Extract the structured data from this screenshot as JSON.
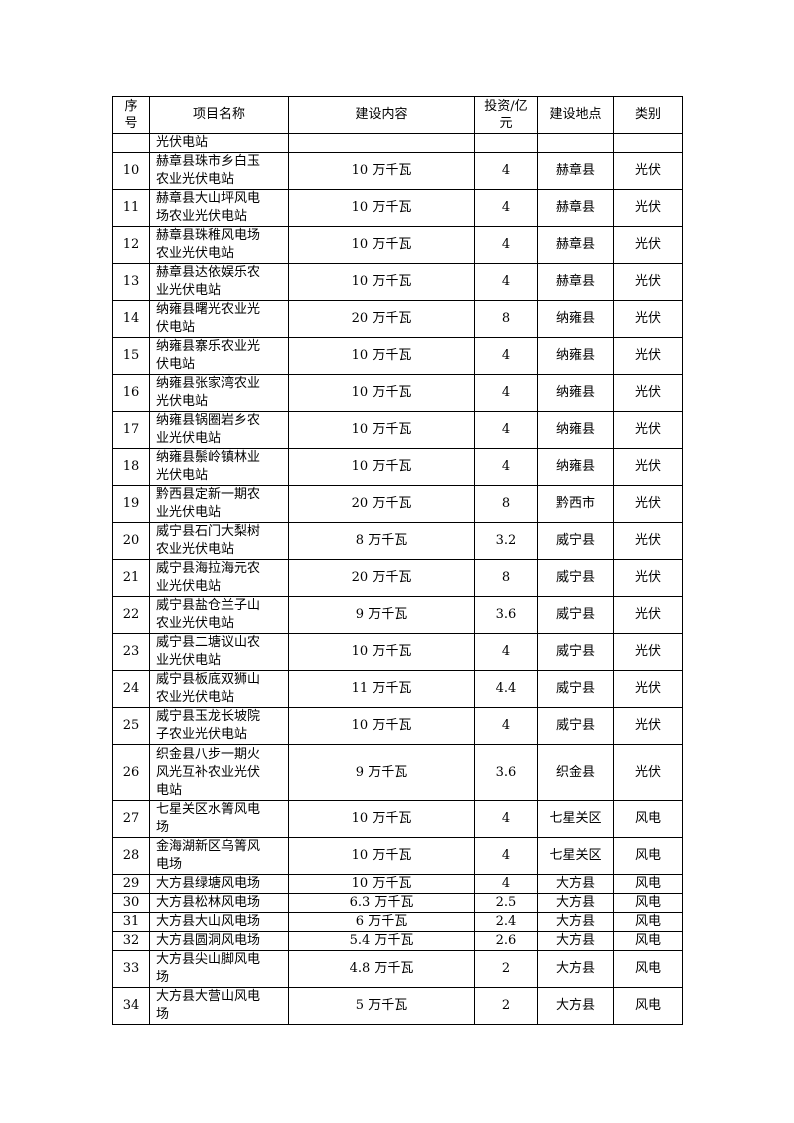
{
  "table": {
    "headers": [
      "序号",
      "项目名称",
      "建设内容",
      "投资/亿元",
      "建设地点",
      "类别"
    ],
    "continuation": {
      "no": "",
      "name": "光伏电站",
      "content": "",
      "investment": "",
      "location": "",
      "type": ""
    },
    "rows": [
      {
        "no": "10",
        "name": "赫章县珠市乡白玉农业光伏电站",
        "content": "10 万千瓦",
        "investment": "4",
        "location": "赫章县",
        "type": "光伏",
        "lines": 2
      },
      {
        "no": "11",
        "name": "赫章县大山坪风电场农业光伏电站",
        "content": "10 万千瓦",
        "investment": "4",
        "location": "赫章县",
        "type": "光伏",
        "lines": 2
      },
      {
        "no": "12",
        "name": "赫章县珠稚风电场农业光伏电站",
        "content": "10 万千瓦",
        "investment": "4",
        "location": "赫章县",
        "type": "光伏",
        "lines": 2
      },
      {
        "no": "13",
        "name": "赫章县达依娱乐农业光伏电站",
        "content": "10 万千瓦",
        "investment": "4",
        "location": "赫章县",
        "type": "光伏",
        "lines": 2
      },
      {
        "no": "14",
        "name": "纳雍县曙光农业光伏电站",
        "content": "20 万千瓦",
        "investment": "8",
        "location": "纳雍县",
        "type": "光伏",
        "lines": 2
      },
      {
        "no": "15",
        "name": "纳雍县寨乐农业光伏电站",
        "content": "10 万千瓦",
        "investment": "4",
        "location": "纳雍县",
        "type": "光伏",
        "lines": 2
      },
      {
        "no": "16",
        "name": "纳雍县张家湾农业光伏电站",
        "content": "10 万千瓦",
        "investment": "4",
        "location": "纳雍县",
        "type": "光伏",
        "lines": 2
      },
      {
        "no": "17",
        "name": "纳雍县锅圈岩乡农业光伏电站",
        "content": "10 万千瓦",
        "investment": "4",
        "location": "纳雍县",
        "type": "光伏",
        "lines": 2
      },
      {
        "no": "18",
        "name": "纳雍县鬃岭镇林业光伏电站",
        "content": "10 万千瓦",
        "investment": "4",
        "location": "纳雍县",
        "type": "光伏",
        "lines": 2
      },
      {
        "no": "19",
        "name": "黔西县定新一期农业光伏电站",
        "content": "20 万千瓦",
        "investment": "8",
        "location": "黔西市",
        "type": "光伏",
        "lines": 2
      },
      {
        "no": "20",
        "name": "威宁县石门大梨树农业光伏电站",
        "content": "8 万千瓦",
        "investment": "3.2",
        "location": "威宁县",
        "type": "光伏",
        "lines": 2
      },
      {
        "no": "21",
        "name": "威宁县海拉海元农业光伏电站",
        "content": "20 万千瓦",
        "investment": "8",
        "location": "威宁县",
        "type": "光伏",
        "lines": 2
      },
      {
        "no": "22",
        "name": "威宁县盐仓兰子山农业光伏电站",
        "content": "9 万千瓦",
        "investment": "3.6",
        "location": "威宁县",
        "type": "光伏",
        "lines": 2
      },
      {
        "no": "23",
        "name": "威宁县二塘议山农业光伏电站",
        "content": "10 万千瓦",
        "investment": "4",
        "location": "威宁县",
        "type": "光伏",
        "lines": 2
      },
      {
        "no": "24",
        "name": "威宁县板底双狮山农业光伏电站",
        "content": "11 万千瓦",
        "investment": "4.4",
        "location": "威宁县",
        "type": "光伏",
        "lines": 2
      },
      {
        "no": "25",
        "name": "威宁县玉龙长坡院子农业光伏电站",
        "content": "10 万千瓦",
        "investment": "4",
        "location": "威宁县",
        "type": "光伏",
        "lines": 2
      },
      {
        "no": "26",
        "name": "织金县八步一期火风光互补农业光伏电站",
        "content": "9 万千瓦",
        "investment": "3.6",
        "location": "织金县",
        "type": "光伏",
        "lines": 3
      },
      {
        "no": "27",
        "name": "七星关区水箐风电场",
        "content": "10 万千瓦",
        "investment": "4",
        "location": "七星关区",
        "type": "风电",
        "lines": 2
      },
      {
        "no": "28",
        "name": "金海湖新区乌箐风电场",
        "content": "10 万千瓦",
        "investment": "4",
        "location": "七星关区",
        "type": "风电",
        "lines": 2
      },
      {
        "no": "29",
        "name": "大方县绿塘风电场",
        "content": "10 万千瓦",
        "investment": "4",
        "location": "大方县",
        "type": "风电",
        "lines": 1
      },
      {
        "no": "30",
        "name": "大方县松林风电场",
        "content": "6.3 万千瓦",
        "investment": "2.5",
        "location": "大方县",
        "type": "风电",
        "lines": 1
      },
      {
        "no": "31",
        "name": "大方县大山风电场",
        "content": "6 万千瓦",
        "investment": "2.4",
        "location": "大方县",
        "type": "风电",
        "lines": 1
      },
      {
        "no": "32",
        "name": "大方县圆洞风电场",
        "content": "5.4 万千瓦",
        "investment": "2.6",
        "location": "大方县",
        "type": "风电",
        "lines": 1
      },
      {
        "no": "33",
        "name": "大方县尖山脚风电场",
        "content": "4.8 万千瓦",
        "investment": "2",
        "location": "大方县",
        "type": "风电",
        "lines": 2
      },
      {
        "no": "34",
        "name": "大方县大营山风电场",
        "content": "5 万千瓦",
        "investment": "2",
        "location": "大方县",
        "type": "风电",
        "lines": 2
      }
    ]
  }
}
